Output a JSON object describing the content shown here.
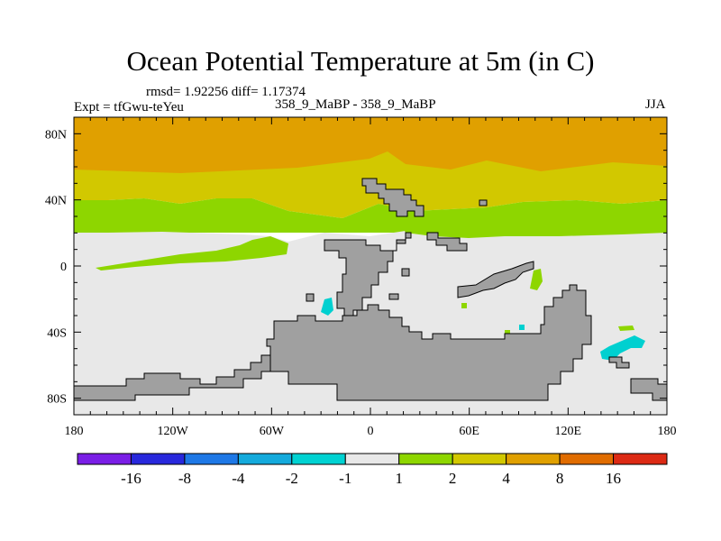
{
  "header": {
    "title": "Ocean Potential Temperature at 5m (in C)",
    "stats": "rmsd= 1.92256  diff= 1.17374",
    "experiment": "Expt = tfGwu-teYeu",
    "comparison": "358_9_MaBP - 358_9_MaBP",
    "season": "JJA"
  },
  "colors": {
    "land": "#a0a0a0",
    "near_zero": "#e8e8e8",
    "bin_1_2": "#8ed600",
    "bin_2_4": "#d2c800",
    "bin_4_8": "#e0a000",
    "bin_neg_2_1": "#00d0d0"
  },
  "chart_data": {
    "type": "heatmap",
    "title": "Ocean Potential Temperature at 5m (in C)",
    "projection": "cylindrical-equidistant",
    "x_range": [
      -180,
      180
    ],
    "y_range": [
      -90,
      90
    ],
    "x_ticks": [
      {
        "value": -180,
        "label": "180"
      },
      {
        "value": -120,
        "label": "120W"
      },
      {
        "value": -60,
        "label": "60W"
      },
      {
        "value": 0,
        "label": "0"
      },
      {
        "value": 60,
        "label": "60E"
      },
      {
        "value": 120,
        "label": "120E"
      },
      {
        "value": 180,
        "label": "180"
      }
    ],
    "y_ticks": [
      {
        "value": 80,
        "label": "80N"
      },
      {
        "value": 40,
        "label": "40N"
      },
      {
        "value": 0,
        "label": "0"
      },
      {
        "value": -40,
        "label": "40S"
      },
      {
        "value": -80,
        "label": "80S"
      }
    ],
    "colorbar": {
      "colors": [
        "#7a1ee6",
        "#2828dc",
        "#1e78e6",
        "#14aadc",
        "#00d2d2",
        "#e8e8e8",
        "#8ed600",
        "#d2c800",
        "#e0a000",
        "#e06c00",
        "#dc2a14"
      ],
      "labels": [
        "-16",
        "-8",
        "-4",
        "-2",
        "-1",
        "1",
        "2",
        "4",
        "8",
        "16"
      ]
    },
    "bands": [
      {
        "name": "band-4-to-8",
        "range": "4 to 8",
        "lat_top": 90,
        "lat_bottom": 60
      },
      {
        "name": "band-2-to-4",
        "range": "2 to 4",
        "lat_top": 60,
        "lat_bottom": 33
      },
      {
        "name": "band-1-to-2",
        "range": "1 to 2",
        "lat_top": 33,
        "lat_bottom": 20
      },
      {
        "name": "band-near-zero",
        "range": "-1 to 1",
        "lat_top": 20,
        "lat_bottom": -90
      }
    ],
    "anomalies": [
      {
        "name": "green-tongue-equatorial",
        "range": "1 to 2",
        "lon": -120,
        "lat": 10
      },
      {
        "name": "cyan-patch-south-atlantic",
        "range": "-2 to -1",
        "lon": -27,
        "lat": -25
      },
      {
        "name": "cyan-patch-southern-ocean",
        "range": "-2 to -1",
        "lon": 160,
        "lat": -47
      },
      {
        "name": "green-patch-indian",
        "range": "1 to 2",
        "lon": 103,
        "lat": -7
      }
    ]
  }
}
